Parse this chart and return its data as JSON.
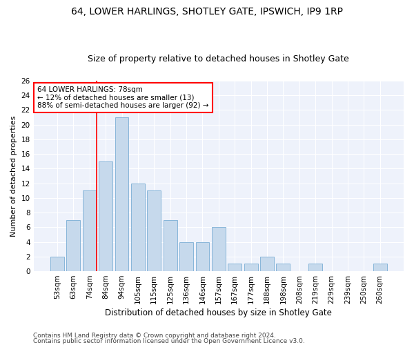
{
  "title1": "64, LOWER HARLINGS, SHOTLEY GATE, IPSWICH, IP9 1RP",
  "title2": "Size of property relative to detached houses in Shotley Gate",
  "xlabel": "Distribution of detached houses by size in Shotley Gate",
  "ylabel": "Number of detached properties",
  "categories": [
    "53sqm",
    "63sqm",
    "74sqm",
    "84sqm",
    "94sqm",
    "105sqm",
    "115sqm",
    "125sqm",
    "136sqm",
    "146sqm",
    "157sqm",
    "167sqm",
    "177sqm",
    "188sqm",
    "198sqm",
    "208sqm",
    "219sqm",
    "229sqm",
    "239sqm",
    "250sqm",
    "260sqm"
  ],
  "values": [
    2,
    7,
    11,
    15,
    21,
    12,
    11,
    7,
    4,
    4,
    6,
    1,
    1,
    2,
    1,
    0,
    1,
    0,
    0,
    0,
    1
  ],
  "bar_color": "#c6d9ec",
  "bar_edge_color": "#7aadd4",
  "vline_pos": 2.45,
  "annotation_text": "64 LOWER HARLINGS: 78sqm\n← 12% of detached houses are smaller (13)\n88% of semi-detached houses are larger (92) →",
  "annotation_box_color": "white",
  "annotation_box_edge_color": "red",
  "vline_color": "red",
  "ylim": [
    0,
    26
  ],
  "yticks": [
    0,
    2,
    4,
    6,
    8,
    10,
    12,
    14,
    16,
    18,
    20,
    22,
    24,
    26
  ],
  "footer1": "Contains HM Land Registry data © Crown copyright and database right 2024.",
  "footer2": "Contains public sector information licensed under the Open Government Licence v3.0.",
  "bg_color": "#eef2fb",
  "grid_color": "#ffffff",
  "title1_fontsize": 10,
  "title2_fontsize": 9,
  "xlabel_fontsize": 8.5,
  "ylabel_fontsize": 8,
  "tick_fontsize": 7.5,
  "annotation_fontsize": 7.5,
  "footer_fontsize": 6.5
}
